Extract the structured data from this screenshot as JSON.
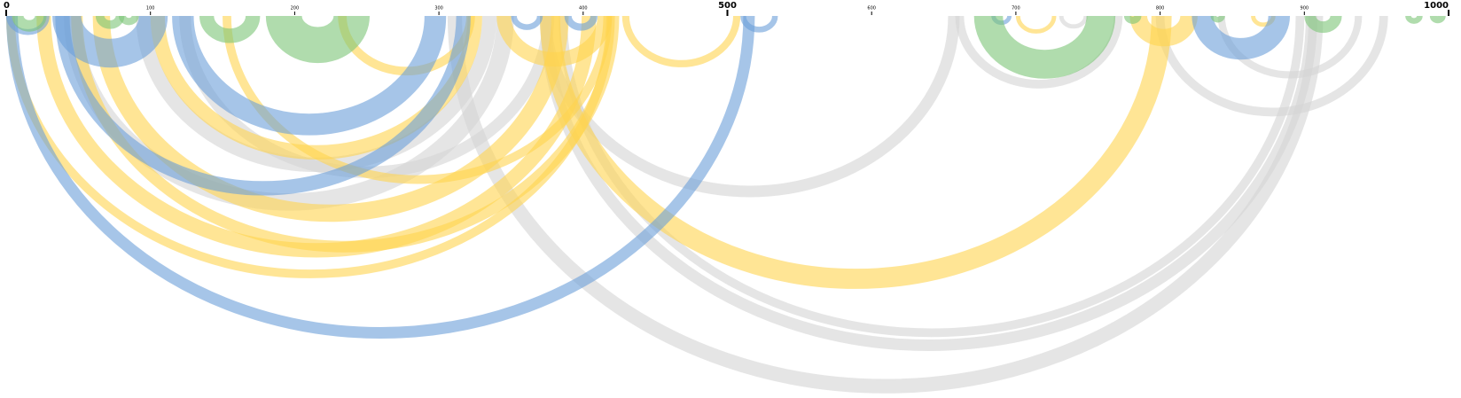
{
  "chart_data": {
    "type": "arc",
    "xlim": [
      0,
      1000
    ],
    "major_xticks": [
      0,
      500,
      1000
    ],
    "xticks": [
      100,
      200,
      300,
      400,
      600,
      700,
      800,
      900
    ],
    "series": [
      {
        "color": "#d3d3d3",
        "arcs": [
          [
            306,
            913,
            10
          ],
          [
            370,
            909,
            8
          ],
          [
            383,
            900,
            6
          ],
          [
            370,
            661,
            8
          ],
          [
            797,
            958,
            6
          ],
          [
            658,
            774,
            6
          ],
          [
            40,
            352,
            12
          ],
          [
            90,
            340,
            10
          ],
          [
            120,
            380,
            8
          ],
          [
            730,
            750,
            3
          ],
          [
            840,
            940,
            5
          ]
        ]
      },
      {
        "color": "#ffd34f",
        "arcs": [
          [
            370,
            808,
            14
          ],
          [
            0,
            422,
            6
          ],
          [
            21,
            409,
            10
          ],
          [
            45,
            425,
            8
          ],
          [
            60,
            390,
            12
          ],
          [
            100,
            330,
            10
          ],
          [
            150,
            420,
            6
          ],
          [
            427,
            509,
            5
          ],
          [
            779,
            826,
            12
          ],
          [
            340,
            420,
            10
          ],
          [
            700,
            728,
            3
          ],
          [
            230,
            325,
            6
          ],
          [
            863,
            880,
            3
          ]
        ]
      },
      {
        "color": "#6a9fd8",
        "arcs": [
          [
            0,
            519,
            8
          ],
          [
            34,
            322,
            10
          ],
          [
            115,
            305,
            15
          ],
          [
            32,
            112,
            20
          ],
          [
            822,
            890,
            15
          ],
          [
            509,
            535,
            4
          ],
          [
            0,
            30,
            4
          ],
          [
            387,
            410,
            5
          ],
          [
            350,
            372,
            4
          ],
          [
            683,
            697,
            3
          ]
        ]
      },
      {
        "color": "#7cc576",
        "arcs": [
          [
            180,
            252,
            25
          ],
          [
            671,
            769,
            20
          ],
          [
            134,
            176,
            10
          ],
          [
            900,
            926,
            8
          ],
          [
            4,
            28,
            8
          ],
          [
            62,
            82,
            6
          ],
          [
            78,
            92,
            5
          ],
          [
            835,
            845,
            4
          ],
          [
            775,
            787,
            5
          ],
          [
            987,
            998,
            5
          ],
          [
            970,
            982,
            4
          ]
        ]
      }
    ]
  }
}
